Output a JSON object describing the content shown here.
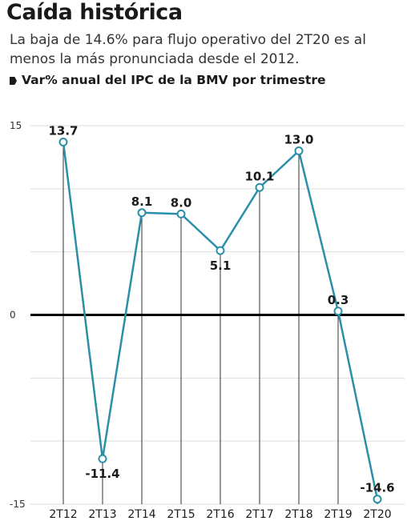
{
  "header": {
    "title": "Caída histórica",
    "subtitle": "La baja de 14.6% para flujo operativo del 2T20 es al menos la más pronunciada desde el 2012.",
    "series_label": "Var% anual del IPC de la BMV por trimestre"
  },
  "colors": {
    "line": "#2b8faa",
    "zero_line": "#000000",
    "grid": "#dddddd",
    "vgrid": "#333333"
  },
  "chart_data": {
    "type": "line",
    "categories": [
      "2T12",
      "2T13",
      "2T14",
      "2T15",
      "2T16",
      "2T17",
      "2T18",
      "2T19",
      "2T20"
    ],
    "values": [
      13.7,
      -11.4,
      8.1,
      8.0,
      5.1,
      10.1,
      13.0,
      0.3,
      -14.6
    ],
    "value_labels": [
      "13.7",
      "-11.4",
      "8.1",
      "8.0",
      "5.1",
      "10.1",
      "13.0",
      "0.3",
      "-14.6"
    ],
    "ylim": [
      -15,
      15
    ],
    "yticks": [
      15,
      0,
      -15
    ],
    "ytick_labels": [
      "15",
      "0",
      "-15"
    ],
    "grid": true,
    "legend": "none"
  }
}
